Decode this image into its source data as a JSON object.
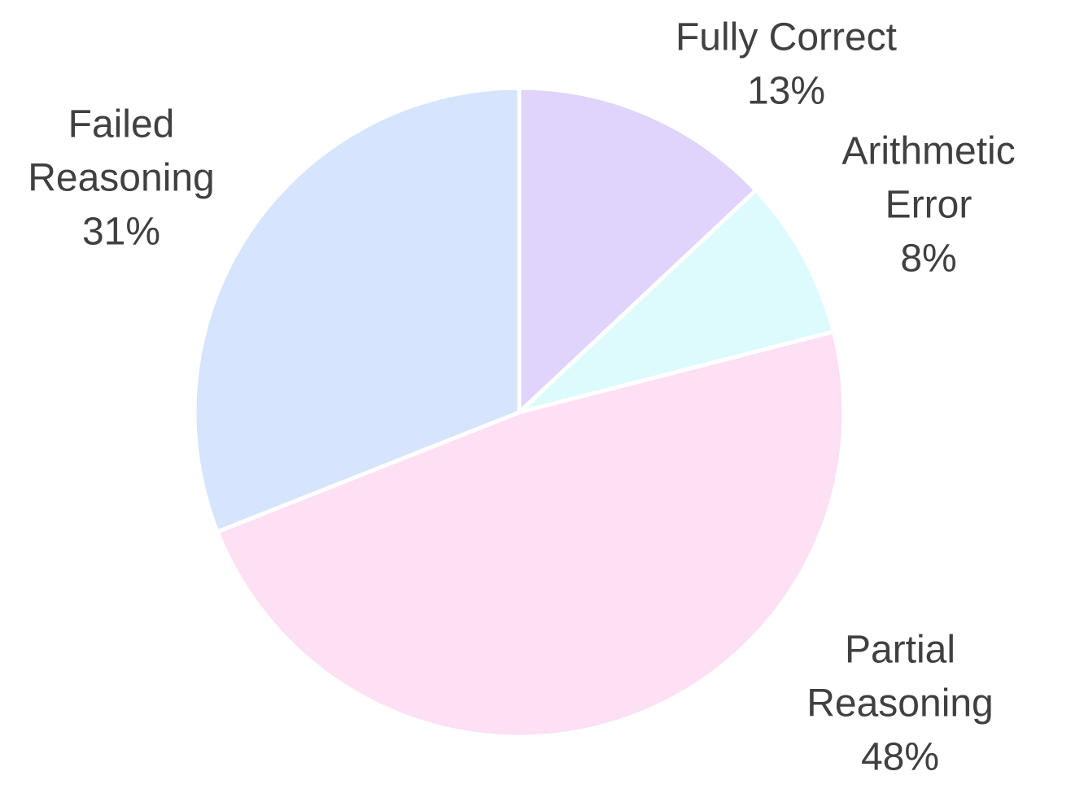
{
  "chart_data": {
    "type": "pie",
    "start_angle_deg": 0,
    "direction": "clockwise",
    "slices": [
      {
        "label_lines": [
          "Fully Correct"
        ],
        "value": 13,
        "display": "13%",
        "color": "#E0D3FC"
      },
      {
        "label_lines": [
          "Arithmetic",
          "Error"
        ],
        "value": 8,
        "display": "8%",
        "color": "#DDFBFD"
      },
      {
        "label_lines": [
          "Partial",
          "Reasoning"
        ],
        "value": 48,
        "display": "48%",
        "color": "#FDE0F4"
      },
      {
        "label_lines": [
          "Failed",
          "Reasoning"
        ],
        "value": 31,
        "display": "31%",
        "color": "#D6E4FD"
      }
    ],
    "title": "",
    "legend": "none",
    "data_labels": "outside, category name and percentage"
  }
}
